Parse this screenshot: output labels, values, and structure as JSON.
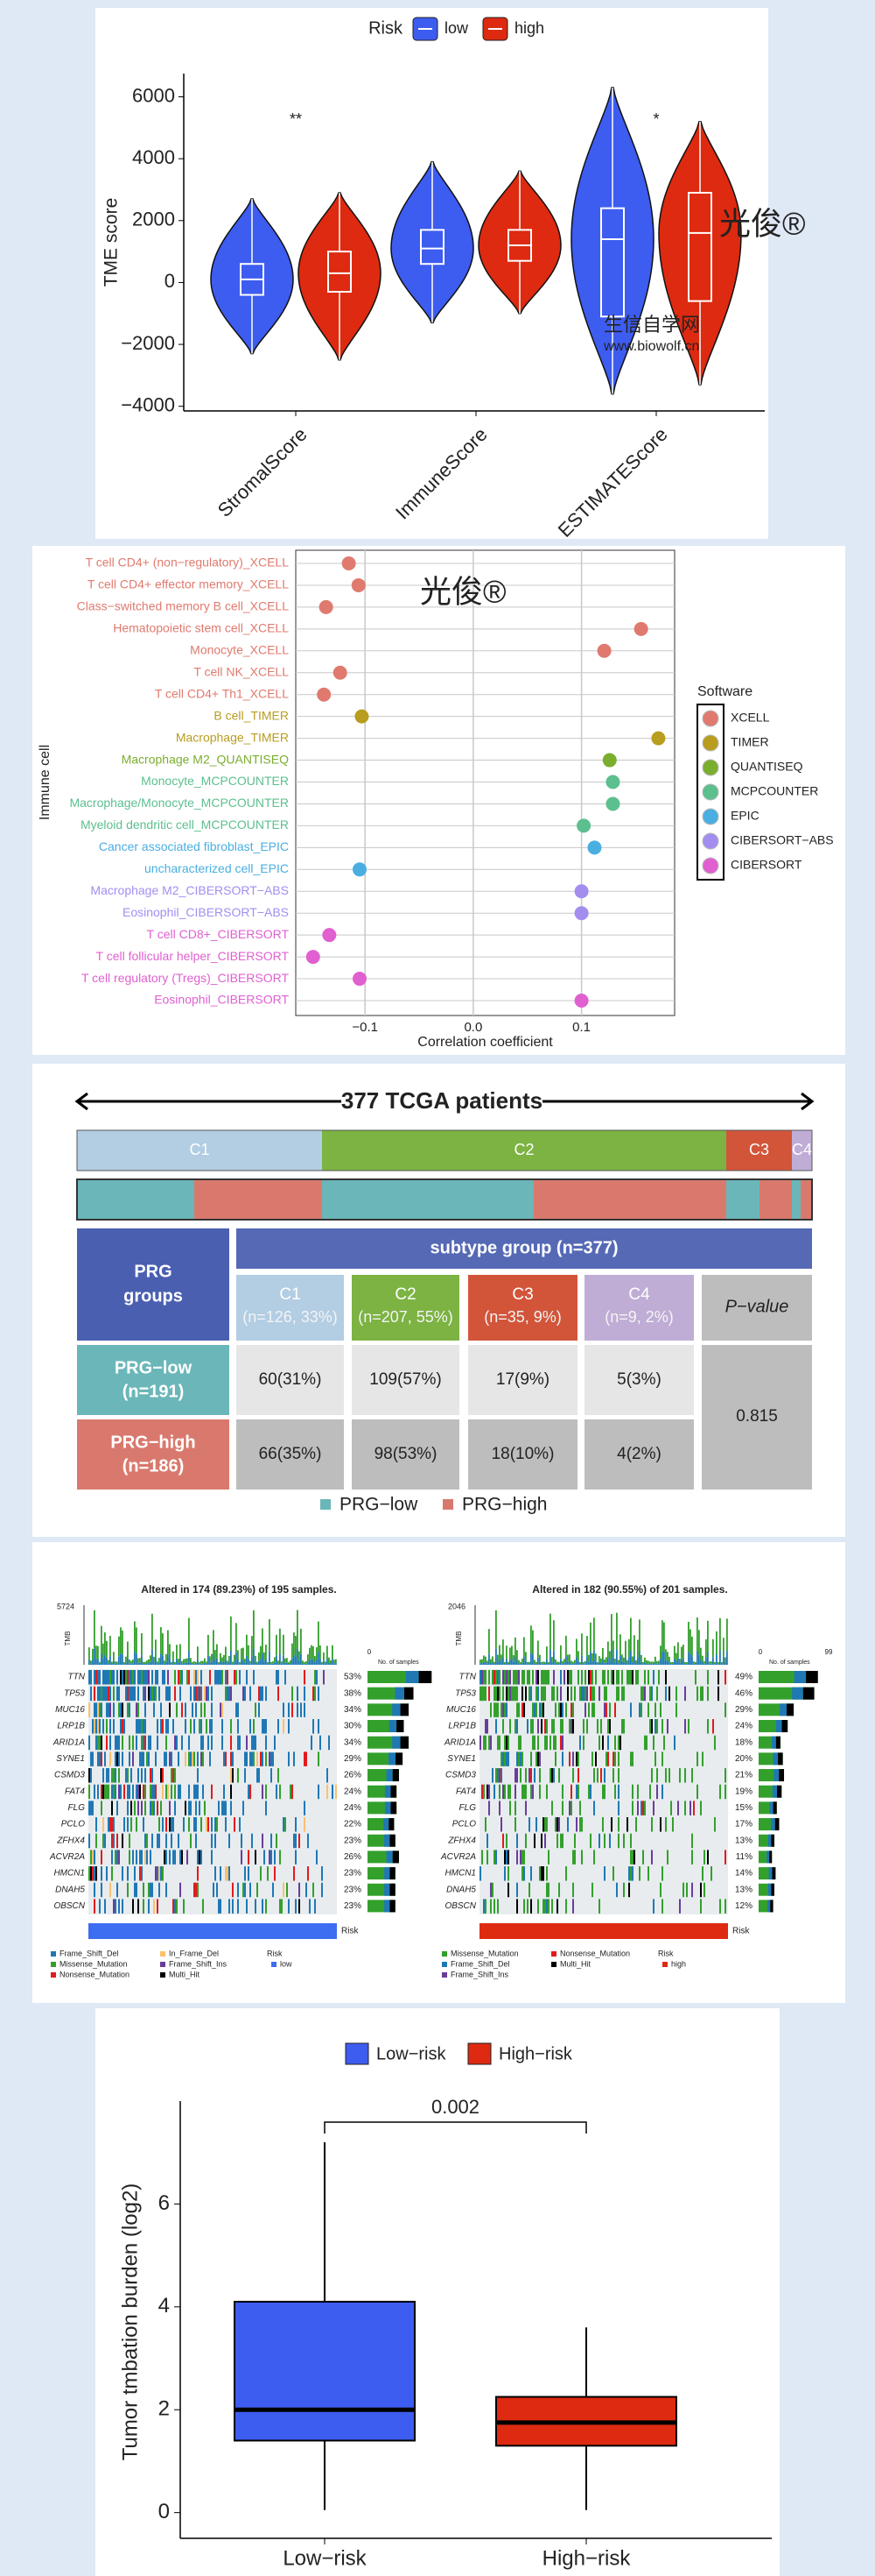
{
  "chart_data": [
    {
      "type": "violin",
      "ylabel": "TME score",
      "legend_title": "Risk",
      "categories": [
        "StromalScore",
        "ImmuneScore",
        "ESTIMATEScore"
      ],
      "annotations": [
        "**",
        null,
        "*"
      ],
      "series": [
        {
          "name": "low",
          "color": "#3d5cf0",
          "min": [
            -2300,
            -1300,
            -3600
          ],
          "q1": [
            -400,
            600,
            -1100
          ],
          "median": [
            100,
            1100,
            1400
          ],
          "q3": [
            600,
            1700,
            2400
          ],
          "max": [
            2700,
            3900,
            6300
          ]
        },
        {
          "name": "high",
          "color": "#dd2a10",
          "min": [
            -2500,
            -1000,
            -3300
          ],
          "q1": [
            -300,
            700,
            -600
          ],
          "median": [
            300,
            1200,
            1600
          ],
          "q3": [
            1000,
            1700,
            2900
          ],
          "max": [
            2900,
            3600,
            5200
          ]
        }
      ],
      "ylim": [
        -4150,
        6750
      ],
      "yticks": [
        {
          "value": -4000,
          "label": "−4000"
        },
        {
          "value": -2000,
          "label": "−2000"
        },
        0,
        2000,
        4000,
        6000
      ],
      "watermark": "光俊®",
      "watermark_cn": "生信自学网",
      "watermark_url": "www.biowolf.cn"
    },
    {
      "type": "dot",
      "ylabel": "Immune cell",
      "xlabel": "Correlation coefficient",
      "legend_title": "Software",
      "legend": [
        {
          "name": "XCELL",
          "color": "#e07a6e"
        },
        {
          "name": "TIMER",
          "color": "#b89d1e"
        },
        {
          "name": "QUANTISEQ",
          "color": "#7aae2e"
        },
        {
          "name": "MCPCOUNTER",
          "color": "#5cbf8e"
        },
        {
          "name": "EPIC",
          "color": "#4aaee0"
        },
        {
          "name": "CIBERSORT−ABS",
          "color": "#a38ef0"
        },
        {
          "name": "CIBERSORT",
          "color": "#e060d0"
        }
      ],
      "categories": [
        "T cell CD4+ (non−regulatory)_XCELL",
        "T cell CD4+ effector memory_XCELL",
        "Class−switched memory B cell_XCELL",
        "Hematopoietic stem cell_XCELL",
        "Monocyte_XCELL",
        "T cell NK_XCELL",
        "T cell CD4+ Th1_XCELL",
        "B cell_TIMER",
        "Macrophage_TIMER",
        "Macrophage M2_QUANTISEQ",
        "Monocyte_MCPCOUNTER",
        "Macrophage/Monocyte_MCPCOUNTER",
        "Myeloid dendritic cell_MCPCOUNTER",
        "Cancer associated fibroblast_EPIC",
        "uncharacterized cell_EPIC",
        "Macrophage M2_CIBERSORT−ABS",
        "Eosinophil_CIBERSORT−ABS",
        "T cell CD8+_CIBERSORT",
        "T cell follicular helper_CIBERSORT",
        "T cell regulatory (Tregs)_CIBERSORT",
        "Eosinophil_CIBERSORT"
      ],
      "groups": [
        "XCELL",
        "XCELL",
        "XCELL",
        "XCELL",
        "XCELL",
        "XCELL",
        "XCELL",
        "TIMER",
        "TIMER",
        "QUANTISEQ",
        "MCPCOUNTER",
        "MCPCOUNTER",
        "MCPCOUNTER",
        "EPIC",
        "EPIC",
        "CIBERSORT−ABS",
        "CIBERSORT−ABS",
        "CIBERSORT",
        "CIBERSORT",
        "CIBERSORT",
        "CIBERSORT"
      ],
      "values": [
        -0.115,
        -0.106,
        -0.136,
        0.155,
        0.121,
        -0.123,
        -0.138,
        -0.103,
        0.171,
        0.126,
        0.129,
        0.129,
        0.102,
        0.112,
        -0.105,
        0.1,
        0.1,
        -0.133,
        -0.148,
        -0.105,
        0.1
      ],
      "xlim": [
        -0.164,
        0.186
      ],
      "xticks": [
        {
          "value": -0.1,
          "label": "−0.1"
        },
        {
          "value": 0,
          "label": "0.0"
        },
        0.1
      ],
      "grid": true,
      "watermark": "光俊®"
    },
    {
      "type": "box",
      "ylabel": "Tumor tmbation burden (log2)",
      "annotation": "0.002",
      "categories": [
        "Low−risk",
        "High−risk"
      ],
      "colors": [
        "#3d5cf0",
        "#dd2a10"
      ],
      "min": [
        0.05,
        0.05
      ],
      "q1": [
        1.4,
        1.3
      ],
      "median": [
        2.0,
        1.75
      ],
      "q3": [
        4.1,
        2.25
      ],
      "max": [
        7.2,
        3.6
      ],
      "ylim": [
        -0.5,
        8.0
      ],
      "yticks": [
        0,
        2,
        4,
        6
      ]
    }
  ],
  "subtype_table": {
    "title": "377 TCGA patients",
    "group_header": [
      "PRG",
      "groups"
    ],
    "subtype_header": "subtype group (n=377)",
    "p_header": "P−value",
    "p_value": "0.815",
    "clusters": [
      {
        "name": "C1",
        "label": "(n=126, 33%)"
      },
      {
        "name": "C2",
        "label": "(n=207, 55%)"
      },
      {
        "name": "C3",
        "label": "(n=35, 9%)"
      },
      {
        "name": "C4",
        "label": "(n=9, 2%)"
      }
    ],
    "rows": [
      {
        "name": "PRG−low",
        "n": "(n=191)",
        "cells": [
          "60(31%)",
          "109(57%)",
          "17(9%)",
          "5(3%)"
        ]
      },
      {
        "name": "PRG−high",
        "n": "(n=186)",
        "cells": [
          "66(35%)",
          "98(53%)",
          "18(10%)",
          "4(2%)"
        ]
      }
    ],
    "legend": [
      {
        "name": "PRG−low",
        "color": "#6bb6b8"
      },
      {
        "name": "PRG−high",
        "color": "#d9796d"
      }
    ]
  },
  "oncoplots": [
    {
      "title": "Altered in 174 (89.23%) of 195 samples.",
      "tmb_max": "5724",
      "tmb_label": "TMB",
      "samples_label": "No. of samples",
      "sample_ticks": [
        "0"
      ],
      "genes": [
        "TTN",
        "TP53",
        "MUC16",
        "LRP1B",
        "ARID1A",
        "SYNE1",
        "CSMD3",
        "FAT4",
        "FLG",
        "PCLO",
        "ZFHX4",
        "ACVR2A",
        "HMCN1",
        "DNAH5",
        "OBSCN"
      ],
      "percents": [
        "53%",
        "38%",
        "34%",
        "30%",
        "34%",
        "29%",
        "26%",
        "24%",
        "24%",
        "22%",
        "23%",
        "26%",
        "23%",
        "23%",
        "23%"
      ],
      "legend": [
        {
          "name": "Frame_Shift_Del",
          "color": "#1f78b4"
        },
        {
          "name": "Missense_Mutation",
          "color": "#33a02c"
        },
        {
          "name": "Nonsense_Mutation",
          "color": "#e31a1c"
        },
        {
          "name": "In_Frame_Del",
          "color": "#fdbf6f"
        },
        {
          "name": "Frame_Shift_Ins",
          "color": "#6a3d9a"
        },
        {
          "name": "Multi_Hit",
          "color": "#000000"
        }
      ],
      "risk_title": "Risk",
      "risk_name": "low",
      "risk_color": "#3d6df0"
    },
    {
      "title": "Altered in 182 (90.55%) of 201 samples.",
      "tmb_max": "2046",
      "tmb_label": "TMB",
      "samples_label": "No. of samples",
      "sample_ticks": [
        "0",
        "99"
      ],
      "genes": [
        "TTN",
        "TP53",
        "MUC16",
        "LRP1B",
        "ARID1A",
        "SYNE1",
        "CSMD3",
        "FAT4",
        "FLG",
        "PCLO",
        "ZFHX4",
        "ACVR2A",
        "HMCN1",
        "DNAH5",
        "OBSCN"
      ],
      "percents": [
        "49%",
        "46%",
        "29%",
        "24%",
        "18%",
        "20%",
        "21%",
        "19%",
        "15%",
        "17%",
        "13%",
        "11%",
        "14%",
        "13%",
        "12%"
      ],
      "legend": [
        {
          "name": "Missense_Mutation",
          "color": "#33a02c"
        },
        {
          "name": "Frame_Shift_Del",
          "color": "#1f78b4"
        },
        {
          "name": "Frame_Shift_Ins",
          "color": "#6a3d9a"
        },
        {
          "name": "Nonsense_Mutation",
          "color": "#e31a1c"
        },
        {
          "name": "Multi_Hit",
          "color": "#000000"
        }
      ],
      "risk_title": "Risk",
      "risk_name": "high",
      "risk_color": "#dd2a10"
    }
  ]
}
